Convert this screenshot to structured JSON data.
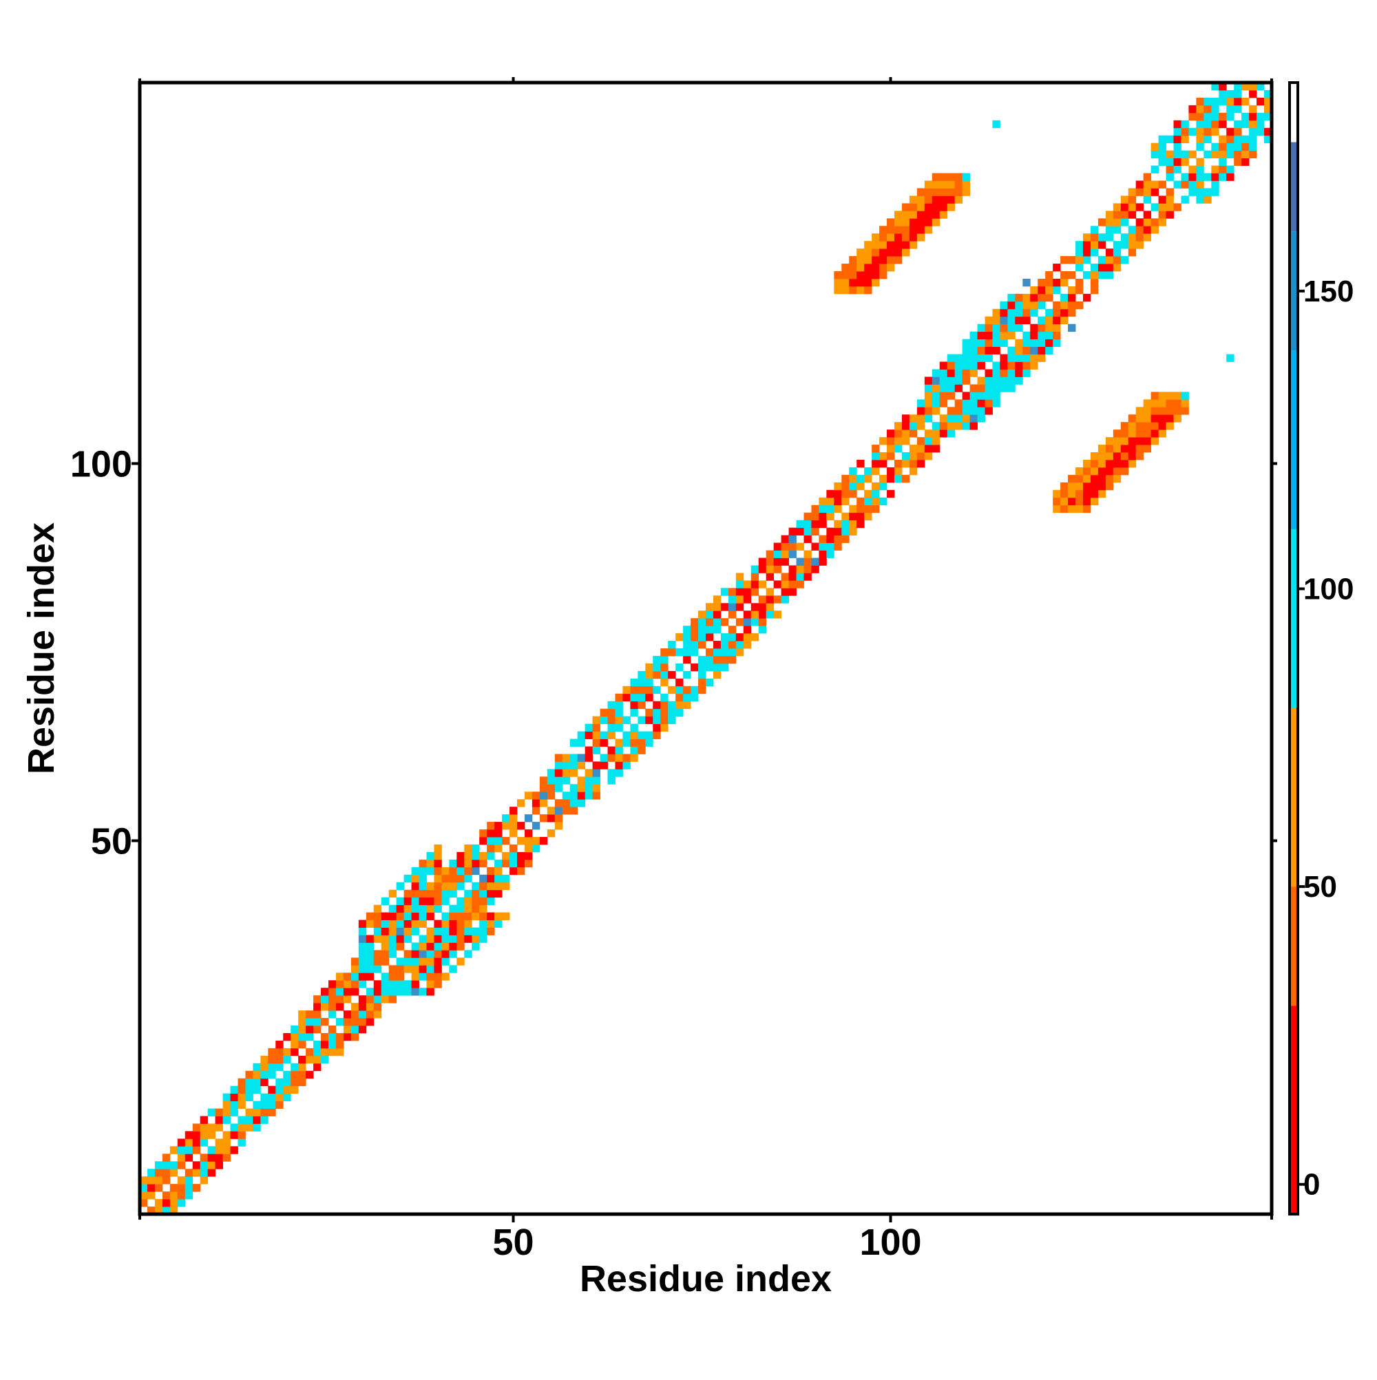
{
  "chart_data": {
    "type": "heatmap",
    "title": "",
    "xlabel": "Residue index",
    "ylabel": "Residue index",
    "xlim": [
      0.5,
      150.5
    ],
    "ylim": [
      0.5,
      150.5
    ],
    "xticks": [
      50,
      100
    ],
    "xtick_labels": [
      "50",
      "100"
    ],
    "yticks": [
      50,
      100
    ],
    "ytick_labels": [
      "50",
      "100"
    ],
    "colorbar": {
      "range": [
        -5,
        185
      ],
      "ticks": [
        0,
        50,
        100,
        150
      ],
      "tick_labels": [
        "0",
        "50",
        "100",
        "150"
      ],
      "bands": [
        {
          "from": -5,
          "to": 30,
          "color": "#ff0000"
        },
        {
          "from": 30,
          "to": 50,
          "color": "#ff6600"
        },
        {
          "from": 50,
          "to": 80,
          "color": "#ff9900"
        },
        {
          "from": 80,
          "to": 110,
          "color": "#00e5ee"
        },
        {
          "from": 110,
          "to": 140,
          "color": "#00b2ee"
        },
        {
          "from": 140,
          "to": 160,
          "color": "#1e90c8"
        },
        {
          "from": 160,
          "to": 175,
          "color": "#4a6fb0"
        },
        {
          "from": 175,
          "to": 185,
          "color": "#ffffff"
        }
      ]
    },
    "colors": {
      "red": "#ff0000",
      "dark_orange": "#ff6600",
      "orange": "#ff9900",
      "cyan": "#00e5ee",
      "steel_blue": "#3a8fc8"
    },
    "diagonal_band": [
      {
        "residues": [
          1,
          12
        ],
        "half_width": 4,
        "cyan_fraction": 0.25
      },
      {
        "residues": [
          12,
          22
        ],
        "half_width": 4,
        "cyan_fraction": 0.35
      },
      {
        "residues": [
          22,
          30
        ],
        "half_width": 5,
        "cyan_fraction": 0.25
      },
      {
        "residues": [
          30,
          40
        ],
        "half_width": 9,
        "cyan_fraction": 0.45
      },
      {
        "residues": [
          40,
          48
        ],
        "half_width": 5,
        "cyan_fraction": 0.3
      },
      {
        "residues": [
          48,
          56
        ],
        "half_width": 4,
        "cyan_fraction": 0.15
      },
      {
        "residues": [
          56,
          66
        ],
        "half_width": 5,
        "cyan_fraction": 0.5
      },
      {
        "residues": [
          66,
          80
        ],
        "half_width": 5,
        "cyan_fraction": 0.45
      },
      {
        "residues": [
          80,
          95
        ],
        "half_width": 4,
        "cyan_fraction": 0.1
      },
      {
        "residues": [
          95,
          105
        ],
        "half_width": 4,
        "cyan_fraction": 0.2
      },
      {
        "residues": [
          105,
          118
        ],
        "half_width": 6,
        "cyan_fraction": 0.5
      },
      {
        "residues": [
          118,
          135
        ],
        "half_width": 4,
        "cyan_fraction": 0.3
      },
      {
        "residues": [
          135,
          150
        ],
        "half_width": 7,
        "cyan_fraction": 0.55
      }
    ],
    "off_diagonal_patches": [
      {
        "x_start": 95,
        "y_start": 124,
        "length": 14,
        "half_width": 2,
        "main_value": 5
      },
      {
        "x_start": 124,
        "y_start": 95,
        "length": 14,
        "half_width": 2,
        "main_value": 5
      }
    ],
    "isolated_points": [
      {
        "x": 114,
        "y": 145,
        "value": 95
      },
      {
        "x": 145,
        "y": 114,
        "value": 95
      }
    ]
  }
}
